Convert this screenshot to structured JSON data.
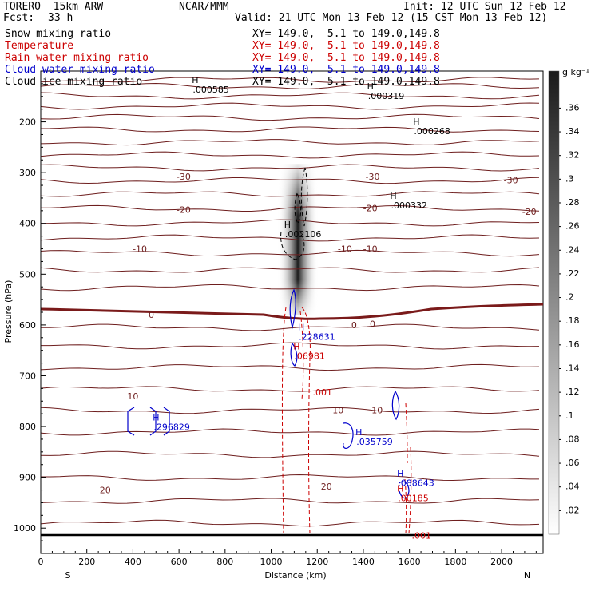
{
  "header": {
    "model": "TORERO  15km ARW",
    "org": "NCAR/MMM",
    "init": "Init: 12 UTC Sun 12 Feb 12",
    "fcst_label": "Fcst:",
    "fcst_value": "33 h",
    "valid": "Valid: 21 UTC Mon 13 Feb 12 (15 CST Mon 13 Feb 12)"
  },
  "fields": [
    {
      "name": "Snow mixing ratio",
      "xy": "XY= 149.0,  5.1 to 149.0,149.8",
      "color": "#000000"
    },
    {
      "name": "Temperature",
      "xy": "XY= 149.0,  5.1 to 149.0,149.8",
      "color": "#cc0000"
    },
    {
      "name": "Rain water mixing ratio",
      "xy": "XY= 149.0,  5.1 to 149.0,149.8",
      "color": "#cc0000"
    },
    {
      "name": "Cloud water mixing ratio",
      "xy": "XY= 149.0,  5.1 to 149.0,149.8",
      "color": "#0000cc"
    },
    {
      "name": "Cloud ice mixing ratio",
      "xy": "XY= 149.0,  5.1 to 149.0,149.8",
      "color": "#000000"
    }
  ],
  "chart_data": {
    "type": "contour",
    "xlabel": "Distance (km)",
    "ylabel": "Pressure (hPa)",
    "xlim": [
      0,
      2180
    ],
    "ylim": [
      100,
      1050
    ],
    "x_ticks": [
      0,
      200,
      400,
      600,
      800,
      1000,
      1200,
      1400,
      1600,
      1800,
      2000
    ],
    "y_ticks": [
      200,
      300,
      400,
      500,
      600,
      700,
      800,
      900,
      1000
    ],
    "x_end_labels": [
      "S",
      "N"
    ],
    "colorbar": {
      "unit": "g kg⁻¹",
      "ticks": [
        ".02",
        ".04",
        ".06",
        ".08",
        ".1",
        ".12",
        ".14",
        ".16",
        ".18",
        ".2",
        ".22",
        ".24",
        ".26",
        ".28",
        ".3",
        ".32",
        ".34",
        ".36"
      ]
    },
    "temperature_labels": [
      {
        "x": 620,
        "p": 308,
        "text": "-30"
      },
      {
        "x": 1440,
        "p": 308,
        "text": "-30"
      },
      {
        "x": 2040,
        "p": 315,
        "text": "-30"
      },
      {
        "x": 620,
        "p": 373,
        "text": "-20"
      },
      {
        "x": 1430,
        "p": 370,
        "text": "-20"
      },
      {
        "x": 2120,
        "p": 377,
        "text": "-20"
      },
      {
        "x": 430,
        "p": 450,
        "text": "-10"
      },
      {
        "x": 1320,
        "p": 450,
        "text": "-10"
      },
      {
        "x": 1430,
        "p": 450,
        "text": "-10"
      },
      {
        "x": 480,
        "p": 580,
        "text": "0"
      },
      {
        "x": 1360,
        "p": 600,
        "text": "0"
      },
      {
        "x": 1440,
        "p": 598,
        "text": "0"
      },
      {
        "x": 400,
        "p": 740,
        "text": "10"
      },
      {
        "x": 1290,
        "p": 768,
        "text": "10"
      },
      {
        "x": 1460,
        "p": 768,
        "text": "10"
      },
      {
        "x": 280,
        "p": 925,
        "text": "20"
      },
      {
        "x": 1240,
        "p": 918,
        "text": "20"
      }
    ],
    "maxima": [
      {
        "x": 660,
        "p": 136,
        "text": ".000585",
        "color": "#000000"
      },
      {
        "x": 1420,
        "p": 149,
        "text": ".000319",
        "color": "#000000"
      },
      {
        "x": 1620,
        "p": 218,
        "text": ".000268",
        "color": "#000000"
      },
      {
        "x": 1520,
        "p": 364,
        "text": ".000332",
        "color": "#000000"
      },
      {
        "x": 1060,
        "p": 421,
        "text": ".002106",
        "color": "#000000"
      },
      {
        "x": 1120,
        "p": 623,
        "text": ".228631",
        "color": "#0000cc"
      },
      {
        "x": 1100,
        "p": 661,
        "text": ".06981",
        "color": "#cc0000"
      },
      {
        "x": 490,
        "p": 801,
        "text": ".296829",
        "color": "#0000cc"
      },
      {
        "x": 1370,
        "p": 830,
        "text": ".035759",
        "color": "#0000cc"
      },
      {
        "x": 1550,
        "p": 911,
        "text": ".088643",
        "color": "#0000cc"
      },
      {
        "x": 1550,
        "p": 941,
        "text": ".00185",
        "color": "#cc0000"
      }
    ],
    "rain_labels": [
      {
        "x": 1180,
        "p": 732,
        "text": ".001"
      },
      {
        "x": 1610,
        "p": 1015,
        "text": ".001"
      }
    ],
    "snow_max_g_per_kg": 0.36
  }
}
